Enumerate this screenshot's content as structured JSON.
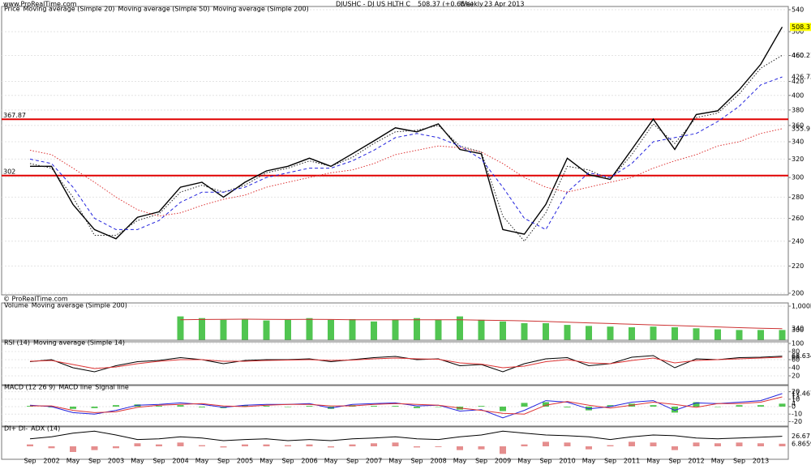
{
  "header": {
    "site": "www.ProRealTime.com",
    "symbol": "DJUSHC - DJ US HLTH C",
    "price": "508.37 (+0.65%)",
    "period": "Weekly",
    "date": "23 Apr 2013",
    "copyright": "© ProRealTime.com"
  },
  "chart_data": [
    {
      "type": "line",
      "log": true,
      "categories": [
        "Sep",
        "2002",
        "May",
        "Sep",
        "2003",
        "May",
        "Sep",
        "2004",
        "May",
        "Sep",
        "2005",
        "May",
        "Sep",
        "2006",
        "May",
        "Sep",
        "2007",
        "May",
        "Sep",
        "2008",
        "May",
        "Sep",
        "2009",
        "May",
        "Sep",
        "2010",
        "May",
        "Sep",
        "2011",
        "May",
        "Sep",
        "2012",
        "May",
        "Sep",
        "2013",
        null
      ],
      "series": [
        {
          "name": "Price",
          "color": "#000000",
          "style": "solid",
          "values": [
            312,
            312,
            273,
            250,
            242,
            261,
            266,
            290,
            295,
            280,
            295,
            307,
            312,
            321,
            312,
            326,
            341,
            357,
            352,
            362,
            331,
            326,
            250,
            246,
            273,
            321,
            303,
            298,
            331,
            368,
            331,
            374,
            379,
            408,
            446,
            508.37
          ]
        },
        {
          "name": "Moving average (Simple 20)",
          "color": "#222222",
          "style": "dotted",
          "values": [
            315,
            310,
            280,
            245,
            245,
            258,
            264,
            285,
            292,
            285,
            292,
            305,
            310,
            318,
            312,
            322,
            338,
            352,
            354,
            360,
            335,
            328,
            262,
            240,
            265,
            312,
            308,
            298,
            325,
            362,
            338,
            370,
            376,
            402,
            440,
            460.21
          ]
        },
        {
          "name": "Moving average (Simple 50)",
          "color": "#2222dd",
          "style": "dashed",
          "values": [
            320,
            315,
            290,
            260,
            250,
            250,
            258,
            275,
            285,
            285,
            290,
            300,
            305,
            310,
            310,
            318,
            330,
            345,
            350,
            345,
            335,
            320,
            290,
            260,
            250,
            285,
            305,
            300,
            315,
            340,
            345,
            350,
            365,
            385,
            415,
            426.73
          ]
        },
        {
          "name": "Moving average (Simple 200)",
          "color": "#dd3333",
          "style": "dotted",
          "values": [
            330,
            325,
            310,
            295,
            280,
            268,
            262,
            265,
            272,
            278,
            282,
            290,
            295,
            300,
            305,
            308,
            315,
            325,
            330,
            335,
            333,
            328,
            315,
            300,
            290,
            285,
            290,
            295,
            300,
            310,
            318,
            325,
            335,
            340,
            350,
            355.9
          ]
        }
      ],
      "levels": [
        367.87,
        302
      ],
      "level_color": "#e00000",
      "ylim": [
        200,
        540
      ],
      "yticks": [
        200,
        220,
        240,
        260,
        280,
        300,
        320,
        340,
        360,
        380,
        400,
        420,
        460,
        500,
        540
      ],
      "grid": true
    },
    {
      "type": "bar",
      "series": [
        {
          "name": "Volume",
          "color": "#33bb33",
          "type": "bar",
          "values": [
            null,
            null,
            null,
            null,
            null,
            null,
            null,
            700,
            650,
            600,
            620,
            580,
            600,
            650,
            600,
            620,
            550,
            600,
            650,
            600,
            700,
            600,
            550,
            500,
            500,
            450,
            420,
            400,
            380,
            400,
            380,
            350,
            320,
            300,
            300,
            300
          ]
        },
        {
          "name": "Moving average (Simple 200)",
          "color": "#cc3333",
          "type": "line",
          "style": "solid",
          "values": [
            null,
            null,
            null,
            null,
            null,
            null,
            null,
            600,
            610,
            615,
            620,
            615,
            610,
            615,
            610,
            600,
            600,
            600,
            600,
            600,
            600,
            590,
            580,
            570,
            550,
            530,
            510,
            490,
            470,
            450,
            430,
            410,
            390,
            370,
            350,
            340
          ]
        }
      ],
      "ylim": [
        0,
        1000
      ],
      "yticks": [
        {
          "value": 1000,
          "label": "1,000M"
        }
      ],
      "grid": true
    },
    {
      "type": "line",
      "series": [
        {
          "name": "RSI (14)",
          "color": "#000000",
          "style": "solid",
          "values": [
            55,
            60,
            40,
            30,
            45,
            55,
            58,
            65,
            60,
            50,
            58,
            60,
            60,
            62,
            55,
            60,
            65,
            68,
            60,
            62,
            45,
            48,
            30,
            50,
            62,
            65,
            45,
            50,
            66,
            70,
            40,
            62,
            60,
            65,
            66,
            68.634
          ]
        },
        {
          "name": "Moving average (Simple 14)",
          "color": "#dd3333",
          "style": "solid",
          "values": [
            56,
            58,
            48,
            38,
            42,
            50,
            56,
            60,
            60,
            56,
            56,
            58,
            59,
            60,
            58,
            59,
            62,
            64,
            62,
            61,
            52,
            49,
            40,
            44,
            55,
            60,
            52,
            50,
            58,
            64,
            52,
            58,
            60,
            62,
            64,
            66
          ]
        }
      ],
      "ylim": [
        0,
        100
      ],
      "yticks": [
        20,
        40,
        60,
        80,
        100
      ],
      "grid": true
    },
    {
      "type": "line",
      "series": [
        {
          "name": "MACD (12 26 9)",
          "color": "#33bb33",
          "type": "bar",
          "values": [
            1,
            -1,
            -3,
            -2,
            2,
            3,
            1,
            2,
            -1,
            -2,
            2,
            1,
            0,
            1,
            -3,
            2,
            1,
            1,
            -2,
            0,
            -4,
            1,
            -6,
            5,
            6,
            -1,
            -5,
            2,
            4,
            2,
            -8,
            6,
            0,
            2,
            2,
            4
          ]
        },
        {
          "name": "MACD line",
          "color": "#2222dd",
          "style": "solid",
          "values": [
            2,
            0,
            -8,
            -10,
            -5,
            2,
            3,
            5,
            3,
            -1,
            2,
            3,
            3,
            4,
            -2,
            3,
            4,
            5,
            1,
            2,
            -6,
            -4,
            -15,
            -5,
            8,
            6,
            -3,
            0,
            6,
            8,
            -5,
            5,
            4,
            6,
            8,
            17.467
          ]
        },
        {
          "name": "Signal line",
          "color": "#dd3333",
          "style": "solid",
          "values": [
            1,
            1,
            -5,
            -8,
            -7,
            -1,
            2,
            3,
            4,
            1,
            0,
            2,
            3,
            3,
            1,
            1,
            3,
            4,
            3,
            2,
            -2,
            -5,
            -9,
            -10,
            2,
            7,
            2,
            -2,
            2,
            6,
            3,
            -1,
            4,
            4,
            6,
            13
          ]
        }
      ],
      "ylim": [
        -25,
        25
      ],
      "yticks": [
        -20,
        -10,
        0,
        10,
        20
      ],
      "grid": true
    },
    {
      "type": "line",
      "series": [
        {
          "name": "DI+ DI-",
          "color": "#e07a7a",
          "type": "bar",
          "values": [
            5,
            -5,
            -15,
            -10,
            -5,
            8,
            5,
            10,
            3,
            -3,
            5,
            5,
            3,
            5,
            -3,
            5,
            8,
            10,
            -3,
            -2,
            -10,
            -8,
            -20,
            5,
            12,
            10,
            -8,
            3,
            12,
            10,
            -10,
            10,
            8,
            10,
            8,
            6.8659
          ]
        },
        {
          "name": "ADX (14)",
          "color": "#000000",
          "style": "solid",
          "values": [
            20,
            25,
            35,
            40,
            30,
            18,
            20,
            25,
            22,
            15,
            18,
            20,
            15,
            18,
            15,
            20,
            22,
            25,
            20,
            18,
            25,
            30,
            40,
            35,
            30,
            28,
            25,
            18,
            25,
            30,
            28,
            22,
            20,
            22,
            24,
            26.67
          ]
        }
      ],
      "ylim": [
        -30,
        45
      ],
      "grid": false
    }
  ]
}
